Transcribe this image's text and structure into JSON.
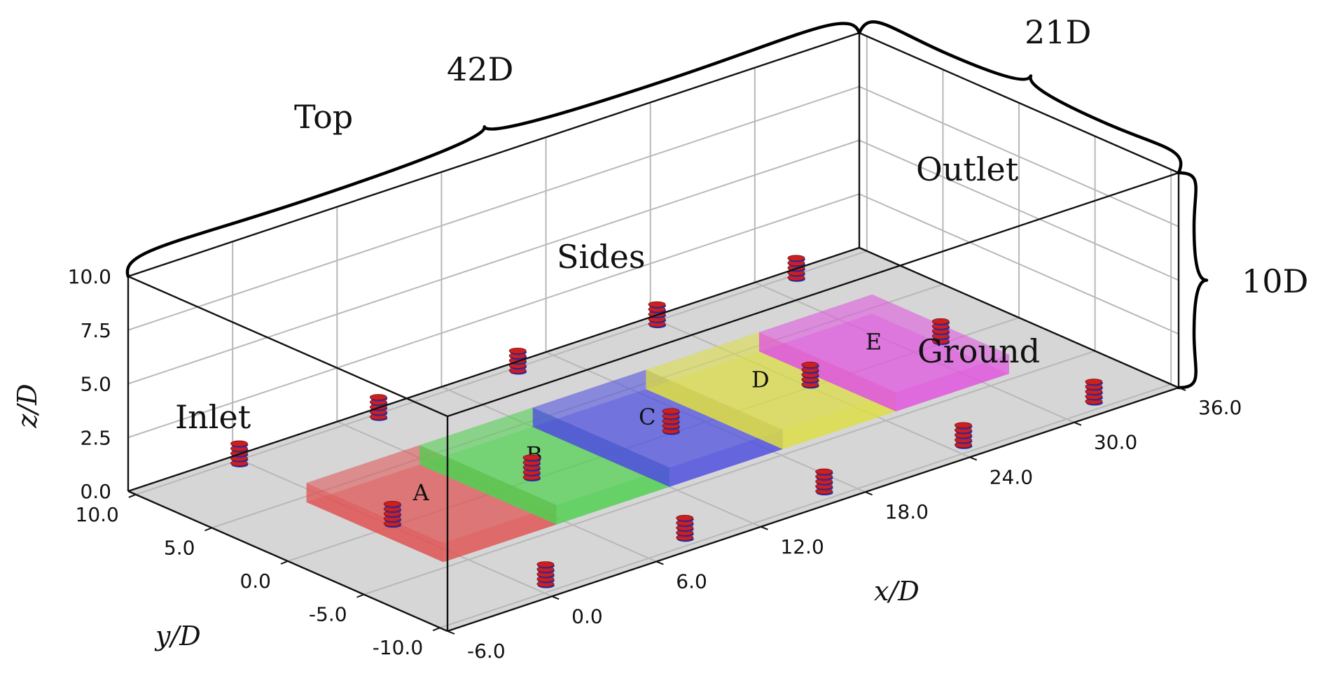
{
  "faces": {
    "top": "Top",
    "sides": "Sides",
    "outlet": "Outlet",
    "ground": "Ground",
    "inlet": "Inlet"
  },
  "dimensions": {
    "length": "42D",
    "width": "21D",
    "height": "10D"
  },
  "axes": {
    "x": {
      "label": "x/D",
      "ticks": [
        "-6.0",
        "0.0",
        "6.0",
        "12.0",
        "18.0",
        "24.0",
        "30.0",
        "36.0"
      ]
    },
    "y": {
      "label": "y/D",
      "ticks": [
        "10.0",
        "5.0",
        "0.0",
        "-5.0",
        "-10.0"
      ]
    },
    "z": {
      "label": "z/D",
      "ticks": [
        "0.0",
        "2.5",
        "5.0",
        "7.5",
        "10.0"
      ]
    }
  },
  "zones": [
    {
      "label": "A",
      "color": "#e05050"
    },
    {
      "label": "B",
      "color": "#4cd04c"
    },
    {
      "label": "C",
      "color": "#4a4ae0"
    },
    {
      "label": "D",
      "color": "#dede40"
    },
    {
      "label": "E",
      "color": "#e050e0"
    }
  ],
  "colors": {
    "ground": "#d6d6d6",
    "turbine_red": "#cc2020",
    "turbine_blue": "#2030c0"
  }
}
